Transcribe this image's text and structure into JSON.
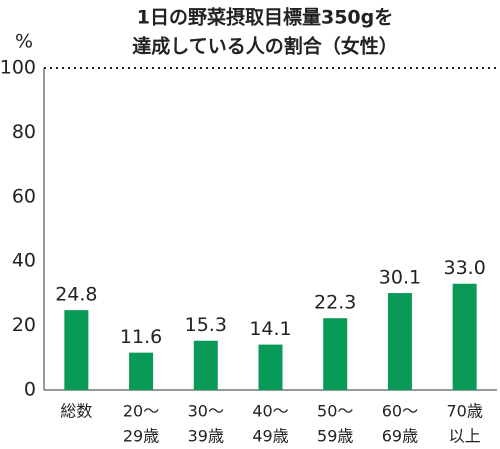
{
  "chart_data": {
    "type": "bar",
    "title": [
      "1日の野菜摂取目標量350gを",
      "達成している人の割合（女性）"
    ],
    "y_label": "%",
    "categories": [
      [
        "総数"
      ],
      [
        "20～",
        "29歳"
      ],
      [
        "30～",
        "39歳"
      ],
      [
        "40～",
        "49歳"
      ],
      [
        "50～",
        "59歳"
      ],
      [
        "60～",
        "69歳"
      ],
      [
        "70歳",
        "以上"
      ]
    ],
    "values": [
      24.8,
      11.6,
      15.3,
      14.1,
      22.3,
      30.1,
      33.0
    ],
    "value_labels": [
      "24.8",
      "11.6",
      "15.3",
      "14.1",
      "22.3",
      "30.1",
      "33.0"
    ],
    "color": "#0a9a58",
    "ylim": [
      0,
      100
    ],
    "yticks": [
      0,
      20,
      40,
      60,
      80,
      100
    ],
    "target_line": 100
  }
}
